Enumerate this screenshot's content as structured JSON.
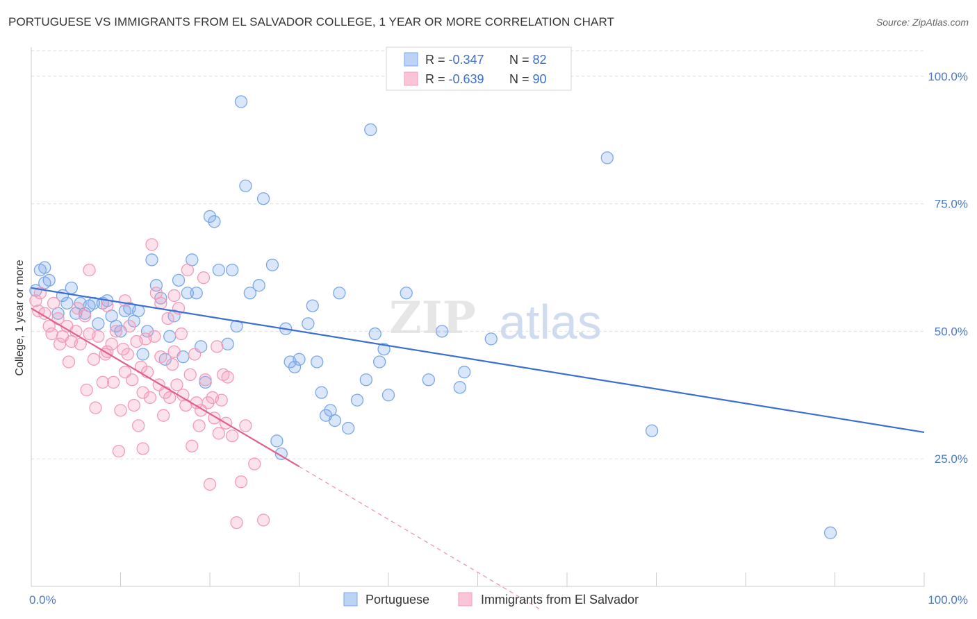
{
  "title": "PORTUGUESE VS IMMIGRANTS FROM EL SALVADOR COLLEGE, 1 YEAR OR MORE CORRELATION CHART",
  "source": "Source: ZipAtlas.com",
  "watermark": {
    "zip": "ZIP",
    "atlas": "atlas"
  },
  "legend_top": [
    {
      "r_label": "R = ",
      "r_value": "-0.347",
      "n_label": "N = ",
      "n_value": "82"
    },
    {
      "r_label": "R = ",
      "r_value": "-0.639",
      "n_label": "N = ",
      "n_value": "90"
    }
  ],
  "chart_data": {
    "type": "scatter",
    "title": "PORTUGUESE VS IMMIGRANTS FROM EL SALVADOR COLLEGE, 1 YEAR OR MORE CORRELATION CHART",
    "xlabel": "",
    "ylabel": "College, 1 year or more",
    "xlim": [
      0,
      100
    ],
    "ylim": [
      0,
      105
    ],
    "x_tick_labels": [
      "0.0%",
      "100.0%"
    ],
    "y_ticks": [
      25,
      50,
      75,
      100
    ],
    "y_tick_labels": [
      "25.0%",
      "50.0%",
      "75.0%",
      "100.0%"
    ],
    "grid": true,
    "legend_position": "bottom",
    "series": [
      {
        "name": "Portuguese",
        "color": "#7aa7e8",
        "line_color": "#3b6fd0",
        "r": -0.347,
        "n": 82,
        "trend": {
          "x0": 0,
          "y0": 58.5,
          "x1": 100,
          "y1": 30.2
        },
        "points": [
          [
            0.5,
            58
          ],
          [
            1.0,
            62
          ],
          [
            1.5,
            62.5
          ],
          [
            2.0,
            60
          ],
          [
            3.0,
            53.5
          ],
          [
            3.5,
            57
          ],
          [
            4.0,
            55.5
          ],
          [
            4.5,
            58.5
          ],
          [
            5.0,
            53.5
          ],
          [
            5.5,
            55.5
          ],
          [
            6.0,
            53.5
          ],
          [
            6.5,
            55
          ],
          [
            7.0,
            55.5
          ],
          [
            7.5,
            51.5
          ],
          [
            8.0,
            55.5
          ],
          [
            8.5,
            56
          ],
          [
            9.0,
            53
          ],
          [
            9.5,
            51
          ],
          [
            10.0,
            50
          ],
          [
            10.5,
            54
          ],
          [
            11.0,
            54.5
          ],
          [
            11.5,
            52
          ],
          [
            12.0,
            54
          ],
          [
            12.5,
            45.5
          ],
          [
            13.0,
            50
          ],
          [
            13.5,
            64
          ],
          [
            14.0,
            59
          ],
          [
            14.5,
            56.5
          ],
          [
            15.0,
            44.5
          ],
          [
            15.5,
            49
          ],
          [
            16.0,
            53
          ],
          [
            16.5,
            60
          ],
          [
            17.0,
            45
          ],
          [
            17.5,
            57.5
          ],
          [
            18.0,
            64
          ],
          [
            18.5,
            57.5
          ],
          [
            19.0,
            47
          ],
          [
            19.5,
            40
          ],
          [
            20.0,
            72.5
          ],
          [
            20.5,
            71.5
          ],
          [
            21.0,
            62
          ],
          [
            22.0,
            47.5
          ],
          [
            22.5,
            62
          ],
          [
            23.0,
            51
          ],
          [
            23.5,
            95
          ],
          [
            24.0,
            78.5
          ],
          [
            24.5,
            57.5
          ],
          [
            25.5,
            59
          ],
          [
            26.0,
            76
          ],
          [
            27.0,
            63
          ],
          [
            27.5,
            28.5
          ],
          [
            28.0,
            26
          ],
          [
            28.5,
            50.5
          ],
          [
            29.0,
            44
          ],
          [
            29.5,
            43
          ],
          [
            30.0,
            44.5
          ],
          [
            31.0,
            51.5
          ],
          [
            31.5,
            55
          ],
          [
            32.0,
            44
          ],
          [
            32.5,
            38
          ],
          [
            33.0,
            33.5
          ],
          [
            33.5,
            34.5
          ],
          [
            34.0,
            32.5
          ],
          [
            34.5,
            57.5
          ],
          [
            35.5,
            31
          ],
          [
            36.5,
            36.5
          ],
          [
            37.5,
            40.5
          ],
          [
            38.0,
            89.5
          ],
          [
            38.5,
            49.5
          ],
          [
            39.0,
            44
          ],
          [
            39.5,
            46.5
          ],
          [
            40.0,
            37.5
          ],
          [
            42.0,
            57.5
          ],
          [
            44.5,
            40.5
          ],
          [
            46.0,
            50
          ],
          [
            48.0,
            39
          ],
          [
            48.5,
            42
          ],
          [
            51.5,
            48.5
          ],
          [
            64.5,
            84
          ],
          [
            69.5,
            30.5
          ],
          [
            89.5,
            10.5
          ],
          [
            1.5,
            59.5
          ]
        ]
      },
      {
        "name": "Immigrants from El Salvador",
        "color": "#f49ab8",
        "line_color": "#e0608a",
        "r": -0.639,
        "n": 90,
        "trend": {
          "x0": 0,
          "y0": 54.5,
          "x1": 30,
          "y1": 23.5
        },
        "trend_dashed": {
          "x0": 30,
          "y0": 23.5,
          "x1": 57,
          "y1": -4.5
        },
        "points": [
          [
            0.5,
            56
          ],
          [
            0.8,
            54
          ],
          [
            1.0,
            57.5
          ],
          [
            1.5,
            53.5
          ],
          [
            2.0,
            51
          ],
          [
            2.3,
            49.5
          ],
          [
            2.5,
            55.5
          ],
          [
            3.0,
            52.5
          ],
          [
            3.2,
            47.5
          ],
          [
            3.5,
            49
          ],
          [
            4.0,
            51
          ],
          [
            4.2,
            44
          ],
          [
            4.5,
            48
          ],
          [
            5.0,
            50
          ],
          [
            5.2,
            54.5
          ],
          [
            5.5,
            47.5
          ],
          [
            6.0,
            53
          ],
          [
            6.2,
            38.5
          ],
          [
            6.5,
            49.5
          ],
          [
            7.0,
            44.5
          ],
          [
            7.2,
            35
          ],
          [
            7.5,
            49
          ],
          [
            8.0,
            40
          ],
          [
            8.3,
            45.5
          ],
          [
            8.5,
            55
          ],
          [
            9.0,
            47.5
          ],
          [
            9.2,
            40
          ],
          [
            9.5,
            50
          ],
          [
            10.0,
            34.5
          ],
          [
            10.3,
            46.5
          ],
          [
            10.5,
            42
          ],
          [
            10.8,
            45.5
          ],
          [
            11.0,
            51
          ],
          [
            11.3,
            40.5
          ],
          [
            11.5,
            35.5
          ],
          [
            11.8,
            48
          ],
          [
            12.0,
            31.5
          ],
          [
            12.3,
            43
          ],
          [
            12.5,
            38
          ],
          [
            12.8,
            48.5
          ],
          [
            13.0,
            42
          ],
          [
            13.3,
            37
          ],
          [
            13.5,
            67
          ],
          [
            13.8,
            49
          ],
          [
            14.0,
            57.5
          ],
          [
            14.3,
            39.5
          ],
          [
            14.5,
            45
          ],
          [
            14.8,
            33.5
          ],
          [
            15.0,
            38
          ],
          [
            15.3,
            52.5
          ],
          [
            15.5,
            37
          ],
          [
            15.8,
            43.5
          ],
          [
            16.0,
            46
          ],
          [
            16.3,
            39.5
          ],
          [
            16.5,
            54.5
          ],
          [
            16.8,
            49.5
          ],
          [
            17.0,
            37.5
          ],
          [
            17.3,
            35.5
          ],
          [
            17.5,
            62
          ],
          [
            17.8,
            41.5
          ],
          [
            18.0,
            27.5
          ],
          [
            18.3,
            45.5
          ],
          [
            18.5,
            36
          ],
          [
            18.8,
            31.5
          ],
          [
            19.0,
            34.5
          ],
          [
            19.3,
            60.5
          ],
          [
            19.5,
            40.5
          ],
          [
            19.8,
            36
          ],
          [
            20.0,
            20
          ],
          [
            20.3,
            37
          ],
          [
            20.5,
            33
          ],
          [
            20.8,
            47
          ],
          [
            21.0,
            30
          ],
          [
            21.3,
            36.5
          ],
          [
            21.5,
            41.5
          ],
          [
            21.8,
            32
          ],
          [
            22.0,
            41
          ],
          [
            22.5,
            29.5
          ],
          [
            23.0,
            12.5
          ],
          [
            23.5,
            20.5
          ],
          [
            24.0,
            31.5
          ],
          [
            25.0,
            24
          ],
          [
            26.0,
            13
          ],
          [
            6.5,
            62
          ],
          [
            10.5,
            56
          ],
          [
            9.8,
            26.5
          ],
          [
            14.5,
            55.5
          ],
          [
            16.0,
            57
          ],
          [
            8.5,
            46
          ],
          [
            12.5,
            27
          ]
        ]
      }
    ]
  }
}
